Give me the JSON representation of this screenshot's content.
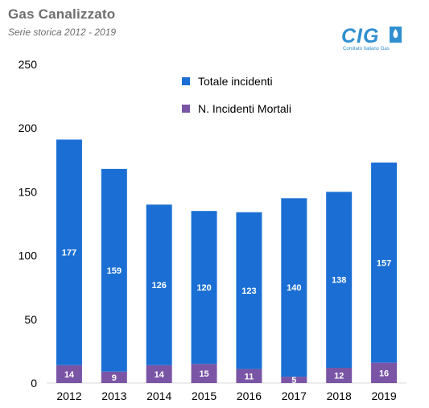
{
  "header": {
    "title": "Gas Canalizzato",
    "subtitle": "Serie storica 2012 - 2019"
  },
  "logo": {
    "wordmark": "CIG",
    "tagline": "Comitato Italiano Gas",
    "color": "#2f8fcf"
  },
  "colors": {
    "total": "#1b6fd4",
    "fatal": "#7a55a6",
    "axis_text": "#000000",
    "axis_line": "#d9d9d9"
  },
  "chart_data": {
    "type": "bar",
    "stacked": true,
    "categories": [
      "2012",
      "2013",
      "2014",
      "2015",
      "2016",
      "2017",
      "2018",
      "2019"
    ],
    "series": [
      {
        "name": "N. Incidenti Mortali",
        "values": [
          14,
          9,
          14,
          15,
          11,
          5,
          12,
          16
        ]
      },
      {
        "name": "Totale incidenti",
        "values": [
          177,
          159,
          126,
          120,
          123,
          140,
          138,
          157
        ]
      }
    ],
    "ylim": [
      0,
      250
    ],
    "yticks": [
      "0",
      "50",
      "100",
      "150",
      "200",
      "250"
    ],
    "legend_position": "top-center",
    "grid": false,
    "xlabel": "",
    "ylabel": ""
  }
}
